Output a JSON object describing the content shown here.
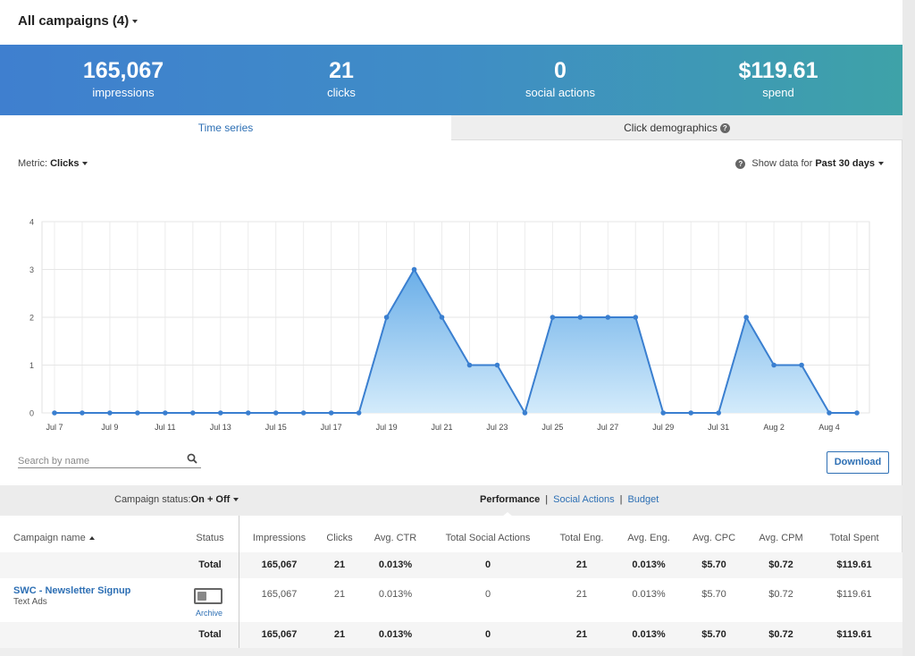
{
  "header": {
    "title": "All campaigns (4)"
  },
  "stats": [
    {
      "value": "165,067",
      "label": "impressions"
    },
    {
      "value": "21",
      "label": "clicks"
    },
    {
      "value": "0",
      "label": "social actions"
    },
    {
      "value": "$119.61",
      "label": "spend"
    }
  ],
  "tabs": {
    "time_series": "Time series",
    "click_demographics": "Click demographics",
    "help_glyph": "?"
  },
  "controls": {
    "metric_label": "Metric:",
    "metric_value": "Clicks",
    "show_label": "Show data for",
    "show_value": "Past 30 days",
    "help_glyph": "?",
    "search_placeholder": "Search by name",
    "download": "Download"
  },
  "filters": {
    "campaign_status_label": "Campaign status:",
    "campaign_status_value": "On + Off",
    "views": [
      "Performance",
      "Social Actions",
      "Budget"
    ],
    "views_separator": "|",
    "active_view": "Performance"
  },
  "table": {
    "columns": [
      "Campaign name",
      "Status",
      "Impressions",
      "Clicks",
      "Avg. CTR",
      "Total Social Actions",
      "Total Eng.",
      "Avg. Eng.",
      "Avg. CPC",
      "Avg. CPM",
      "Total Spent"
    ],
    "total_label": "Total",
    "total_row": [
      "165,067",
      "21",
      "0.013%",
      "0",
      "21",
      "0.013%",
      "$5.70",
      "$0.72",
      "$119.61"
    ],
    "rows": [
      {
        "name": "SWC - Newsletter Signup",
        "type": "Text Ads",
        "status_action": "Archive",
        "values": [
          "165,067",
          "21",
          "0.013%",
          "0",
          "21",
          "0.013%",
          "$5.70",
          "$0.72",
          "$119.61"
        ]
      }
    ]
  },
  "colors": {
    "accent": "#2d6fb4",
    "line": "#3a7fd0",
    "area_top": "#6aaee8",
    "area_bottom": "#d3ebfb",
    "stats_gradient_start": "#3f7fcf",
    "stats_gradient_end": "#3ea2a8"
  },
  "chart_data": {
    "type": "area",
    "x": [
      "Jul 7",
      "Jul 8",
      "Jul 9",
      "Jul 10",
      "Jul 11",
      "Jul 12",
      "Jul 13",
      "Jul 14",
      "Jul 15",
      "Jul 16",
      "Jul 17",
      "Jul 18",
      "Jul 19",
      "Jul 20",
      "Jul 21",
      "Jul 22",
      "Jul 23",
      "Jul 24",
      "Jul 25",
      "Jul 26",
      "Jul 27",
      "Jul 28",
      "Jul 29",
      "Jul 30",
      "Jul 31",
      "Aug 1",
      "Aug 2",
      "Aug 3",
      "Aug 4",
      "Aug 5"
    ],
    "x_tick_labels": [
      "Jul 7",
      "Jul 9",
      "Jul 11",
      "Jul 13",
      "Jul 15",
      "Jul 17",
      "Jul 19",
      "Jul 21",
      "Jul 23",
      "Jul 25",
      "Jul 27",
      "Jul 29",
      "Jul 31",
      "Aug 2",
      "Aug 4"
    ],
    "series": [
      {
        "values": [
          0,
          0,
          0,
          0,
          0,
          0,
          0,
          0,
          0,
          0,
          0,
          0,
          2,
          3,
          2,
          1,
          1,
          0,
          2,
          2,
          2,
          2,
          0,
          0,
          0,
          2,
          1,
          1,
          0,
          0
        ]
      }
    ],
    "ylim": [
      0,
      4
    ],
    "yticks": [
      0,
      1,
      2,
      3,
      4
    ],
    "grid": true,
    "title": "",
    "xlabel": "",
    "ylabel": ""
  }
}
